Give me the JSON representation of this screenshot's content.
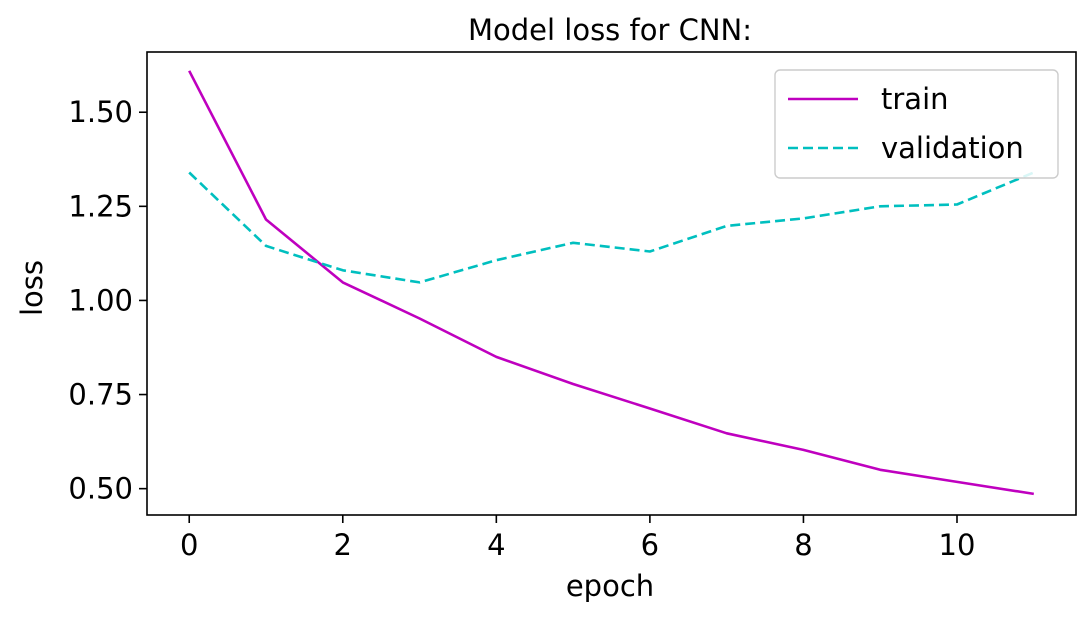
{
  "chart_data": {
    "type": "line",
    "title": "Model loss for CNN:",
    "xlabel": "epoch",
    "ylabel": "loss",
    "x": [
      0,
      1,
      2,
      3,
      4,
      5,
      6,
      7,
      8,
      9,
      10,
      11
    ],
    "xlim": [
      -0.55,
      11.55
    ],
    "ylim": [
      0.43,
      1.66
    ],
    "xticks": [
      0,
      2,
      4,
      6,
      8,
      10
    ],
    "xtick_labels": [
      "0",
      "2",
      "4",
      "6",
      "8",
      "10"
    ],
    "yticks": [
      0.5,
      0.75,
      1.0,
      1.25,
      1.5
    ],
    "ytick_labels": [
      "0.50",
      "0.75",
      "1.00",
      "1.25",
      "1.50"
    ],
    "grid": false,
    "legend_position": "top-right",
    "series": [
      {
        "name": "train",
        "color": "#bf00bf",
        "dash": "solid",
        "values": [
          1.61,
          1.215,
          1.048,
          0.952,
          0.85,
          0.778,
          0.713,
          0.647,
          0.603,
          0.55,
          0.518,
          0.486
        ]
      },
      {
        "name": "validation",
        "color": "#00bfbf",
        "dash": "dashed",
        "values": [
          1.34,
          1.145,
          1.08,
          1.048,
          1.107,
          1.153,
          1.13,
          1.198,
          1.218,
          1.25,
          1.255,
          1.34
        ]
      }
    ]
  }
}
